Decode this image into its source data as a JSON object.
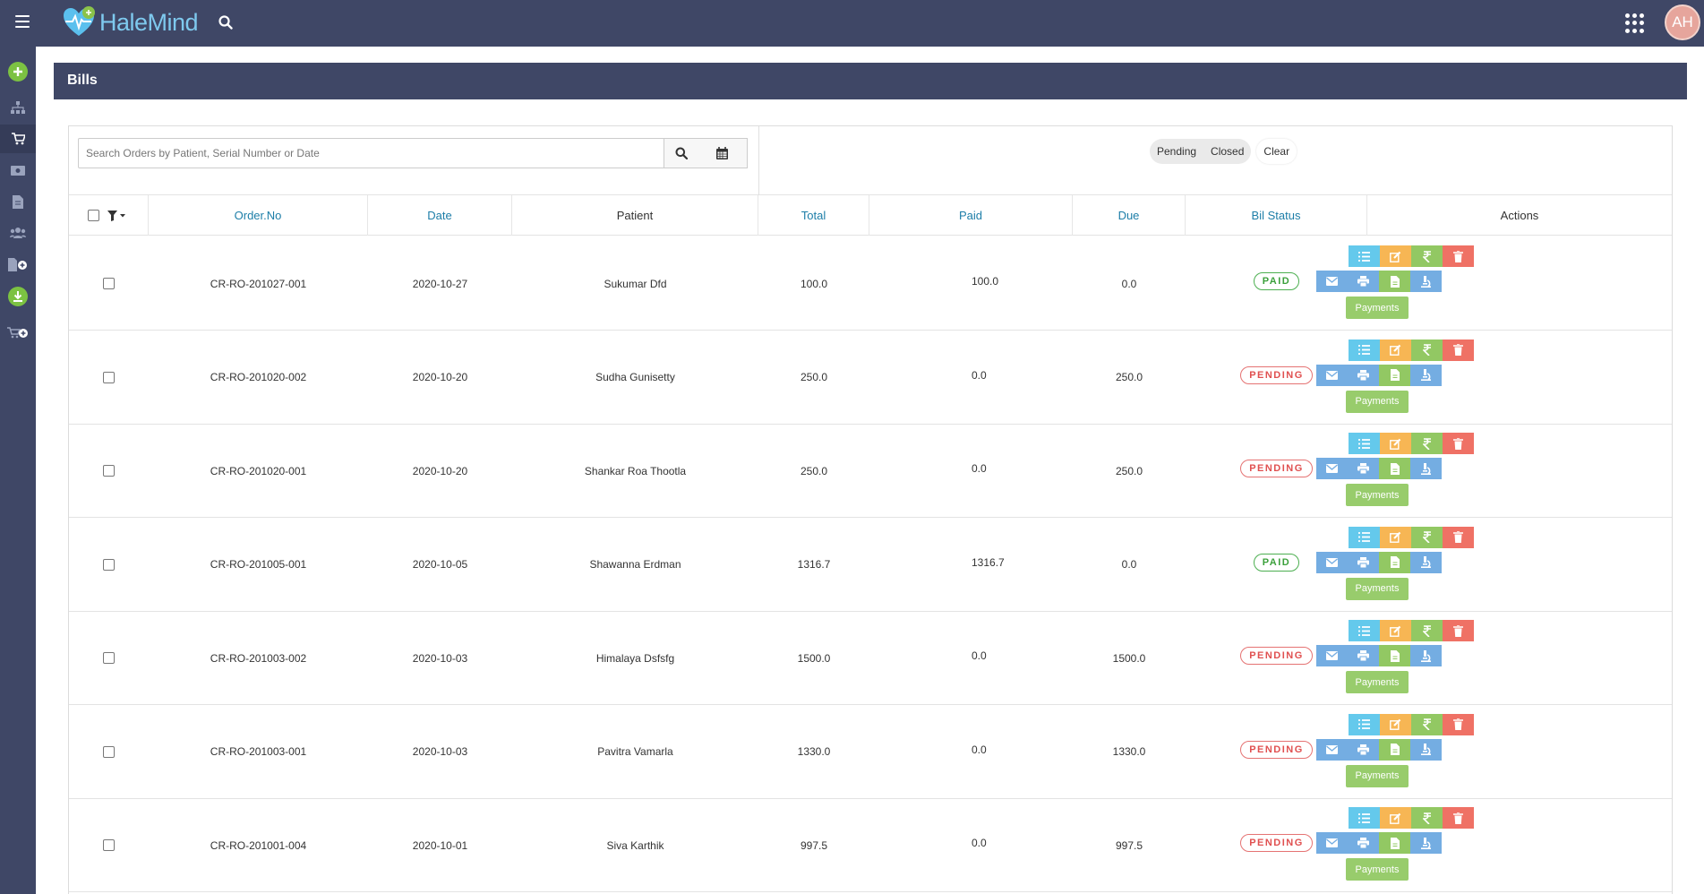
{
  "app": {
    "brand": "HaleMind",
    "user_initials": "AH",
    "colors": {
      "header_bg": "#3f4766",
      "accent": "#1d7ea8",
      "paid": "#4caf50",
      "pending": "#e57373"
    }
  },
  "sidebar": {
    "items": [
      {
        "icon": "add-circle-icon"
      },
      {
        "icon": "sitemap-icon"
      },
      {
        "icon": "cart-icon",
        "active": true
      },
      {
        "icon": "money-icon"
      },
      {
        "icon": "document-icon"
      },
      {
        "icon": "users-icon"
      },
      {
        "icon": "add-document-icon"
      },
      {
        "icon": "download-circle-icon"
      },
      {
        "icon": "add-cart-icon"
      }
    ]
  },
  "page": {
    "title": "Bills"
  },
  "search": {
    "placeholder": "Search Orders by Patient, Serial Number or Date"
  },
  "filters": {
    "pending": "Pending",
    "closed": "Closed",
    "clear": "Clear"
  },
  "table": {
    "headers": {
      "order_no": "Order.No",
      "date": "Date",
      "patient": "Patient",
      "total": "Total",
      "paid": "Paid",
      "due": "Due",
      "status": "Bil Status",
      "actions": "Actions"
    },
    "rows": [
      {
        "order_no": "CR-RO-201027-001",
        "date": "2020-10-27",
        "patient": "Sukumar Dfd",
        "total": "100.0",
        "paid": "100.0",
        "due": "0.0",
        "status": "PAID",
        "payments": "Payments"
      },
      {
        "order_no": "CR-RO-201020-002",
        "date": "2020-10-20",
        "patient": "Sudha Gunisetty",
        "total": "250.0",
        "paid": "0.0",
        "due": "250.0",
        "status": "PENDING",
        "payments": "Payments"
      },
      {
        "order_no": "CR-RO-201020-001",
        "date": "2020-10-20",
        "patient": "Shankar Roa Thootla",
        "total": "250.0",
        "paid": "0.0",
        "due": "250.0",
        "status": "PENDING",
        "payments": "Payments"
      },
      {
        "order_no": "CR-RO-201005-001",
        "date": "2020-10-05",
        "patient": "Shawanna Erdman",
        "total": "1316.7",
        "paid": "1316.7",
        "due": "0.0",
        "status": "PAID",
        "payments": "Payments"
      },
      {
        "order_no": "CR-RO-201003-002",
        "date": "2020-10-03",
        "patient": "Himalaya Dsfsfg",
        "total": "1500.0",
        "paid": "0.0",
        "due": "1500.0",
        "status": "PENDING",
        "payments": "Payments"
      },
      {
        "order_no": "CR-RO-201003-001",
        "date": "2020-10-03",
        "patient": "Pavitra Vamarla",
        "total": "1330.0",
        "paid": "0.0",
        "due": "1330.0",
        "status": "PENDING",
        "payments": "Payments"
      },
      {
        "order_no": "CR-RO-201001-004",
        "date": "2020-10-01",
        "patient": "Siva Karthik",
        "total": "997.5",
        "paid": "0.0",
        "due": "997.5",
        "status": "PENDING",
        "payments": "Payments"
      }
    ]
  }
}
